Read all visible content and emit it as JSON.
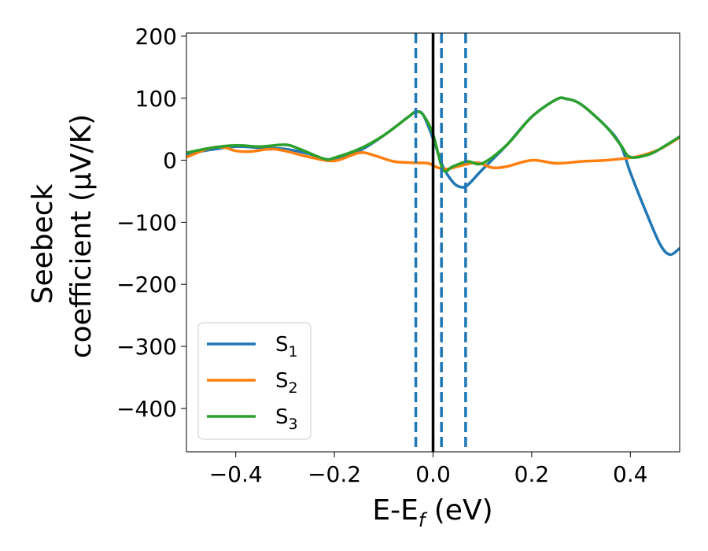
{
  "chart_data": {
    "type": "line",
    "title": "",
    "xlabel": {
      "main": "E-E",
      "sub": "f",
      "unit": " (eV)"
    },
    "ylabel": {
      "line1": "Seebeck",
      "line2": "coefficient  (μV/K)"
    },
    "xlim": [
      -0.5,
      0.5
    ],
    "ylim": [
      -470,
      205
    ],
    "xticks": [
      {
        "v": -0.4,
        "label": "−0.4"
      },
      {
        "v": -0.2,
        "label": "−0.2"
      },
      {
        "v": 0.0,
        "label": "0.0"
      },
      {
        "v": 0.2,
        "label": "0.2"
      },
      {
        "v": 0.4,
        "label": "0.4"
      }
    ],
    "yticks": [
      {
        "v": 200,
        "label": "200"
      },
      {
        "v": 100,
        "label": "100"
      },
      {
        "v": 0,
        "label": "0"
      },
      {
        "v": -100,
        "label": "−100"
      },
      {
        "v": -200,
        "label": "−200"
      },
      {
        "v": -300,
        "label": "−300"
      },
      {
        "v": -400,
        "label": "−400"
      }
    ],
    "legend_position": "lower-left",
    "vlines": [
      {
        "x": -0.035,
        "style": "dashed",
        "color": "#1f77b4"
      },
      {
        "x": 0.0,
        "style": "solid",
        "color": "#000000"
      },
      {
        "x": 0.017,
        "style": "dashed",
        "color": "#1f77b4"
      },
      {
        "x": 0.066,
        "style": "dashed",
        "color": "#1f77b4"
      }
    ],
    "series": [
      {
        "name": "S",
        "sub": "1",
        "color": "#1f77b4",
        "points": [
          [
            -0.5,
            10
          ],
          [
            -0.45,
            17
          ],
          [
            -0.4,
            22
          ],
          [
            -0.35,
            20
          ],
          [
            -0.3,
            18
          ],
          [
            -0.25,
            10
          ],
          [
            -0.22,
            2
          ],
          [
            -0.2,
            3
          ],
          [
            -0.15,
            15
          ],
          [
            -0.1,
            40
          ],
          [
            -0.05,
            70
          ],
          [
            -0.035,
            78
          ],
          [
            -0.02,
            73
          ],
          [
            0.0,
            35
          ],
          [
            0.02,
            -10
          ],
          [
            0.04,
            -35
          ],
          [
            0.055,
            -43
          ],
          [
            0.07,
            -40
          ],
          [
            0.1,
            -15
          ],
          [
            0.15,
            25
          ],
          [
            0.2,
            70
          ],
          [
            0.25,
            98
          ],
          [
            0.27,
            99
          ],
          [
            0.3,
            90
          ],
          [
            0.35,
            55
          ],
          [
            0.38,
            25
          ],
          [
            0.4,
            -20
          ],
          [
            0.43,
            -80
          ],
          [
            0.46,
            -135
          ],
          [
            0.48,
            -152
          ],
          [
            0.5,
            -142
          ]
        ]
      },
      {
        "name": "S",
        "sub": "2",
        "color": "#ff7f0e",
        "points": [
          [
            -0.5,
            5
          ],
          [
            -0.45,
            20
          ],
          [
            -0.42,
            20
          ],
          [
            -0.4,
            15
          ],
          [
            -0.37,
            14
          ],
          [
            -0.33,
            18
          ],
          [
            -0.3,
            15
          ],
          [
            -0.25,
            5
          ],
          [
            -0.2,
            -1
          ],
          [
            -0.15,
            12
          ],
          [
            -0.12,
            8
          ],
          [
            -0.08,
            -2
          ],
          [
            -0.04,
            -4
          ],
          [
            -0.01,
            -5
          ],
          [
            0.01,
            -12
          ],
          [
            0.03,
            -14
          ],
          [
            0.06,
            -8
          ],
          [
            0.09,
            -4
          ],
          [
            0.12,
            -12
          ],
          [
            0.15,
            -10
          ],
          [
            0.2,
            0
          ],
          [
            0.25,
            -5
          ],
          [
            0.3,
            -2
          ],
          [
            0.35,
            0
          ],
          [
            0.39,
            3
          ],
          [
            0.42,
            7
          ],
          [
            0.46,
            18
          ],
          [
            0.5,
            37
          ]
        ]
      },
      {
        "name": "S",
        "sub": "3",
        "color": "#2ca02c",
        "points": [
          [
            -0.5,
            12
          ],
          [
            -0.45,
            20
          ],
          [
            -0.4,
            24
          ],
          [
            -0.35,
            22
          ],
          [
            -0.3,
            25
          ],
          [
            -0.27,
            18
          ],
          [
            -0.22,
            2
          ],
          [
            -0.2,
            4
          ],
          [
            -0.15,
            18
          ],
          [
            -0.1,
            40
          ],
          [
            -0.05,
            70
          ],
          [
            -0.035,
            78
          ],
          [
            -0.02,
            73
          ],
          [
            0.0,
            42
          ],
          [
            0.02,
            -15
          ],
          [
            0.04,
            -10
          ],
          [
            0.07,
            -2
          ],
          [
            0.1,
            -5
          ],
          [
            0.15,
            25
          ],
          [
            0.2,
            70
          ],
          [
            0.25,
            98
          ],
          [
            0.27,
            99
          ],
          [
            0.3,
            90
          ],
          [
            0.35,
            55
          ],
          [
            0.38,
            25
          ],
          [
            0.4,
            5
          ],
          [
            0.44,
            10
          ],
          [
            0.47,
            23
          ],
          [
            0.5,
            38
          ]
        ]
      }
    ]
  }
}
